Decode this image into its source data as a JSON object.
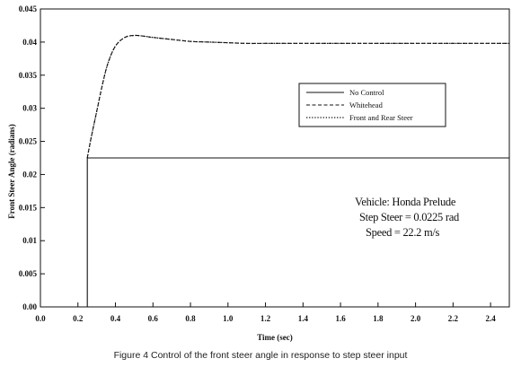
{
  "chart_data": {
    "type": "line",
    "title": "",
    "xlabel": "Time (sec)",
    "ylabel": "Front Steer Angle (radians)",
    "xlim": [
      0,
      2.5
    ],
    "ylim": [
      0,
      0.045
    ],
    "x_ticks": [
      "0.0",
      "0.2",
      "0.4",
      "0.6",
      "0.8",
      "1.0",
      "1.2",
      "1.4",
      "1.6",
      "1.8",
      "2.0",
      "2.2",
      "2.4"
    ],
    "y_ticks": [
      "0.00",
      "0.005",
      "0.01",
      "0.015",
      "0.02",
      "0.025",
      "0.03",
      "0.035",
      "0.04",
      "0.045"
    ],
    "grid": false,
    "legend_position": "right",
    "series": [
      {
        "name": "No Control",
        "style": "solid",
        "x": [
          0,
          0.25,
          0.25,
          2.5
        ],
        "y": [
          0,
          0,
          0.0225,
          0.0225
        ]
      },
      {
        "name": "Whitehead",
        "style": "dashed",
        "x": [
          0.25,
          0.27,
          0.3,
          0.33,
          0.36,
          0.4,
          0.45,
          0.5,
          0.55,
          0.6,
          0.7,
          0.8,
          0.9,
          1.0,
          1.1,
          1.2,
          1.4,
          1.6,
          1.8,
          2.0,
          2.5
        ],
        "y": [
          0.0225,
          0.0255,
          0.0295,
          0.0335,
          0.0368,
          0.0394,
          0.0407,
          0.041,
          0.0409,
          0.0407,
          0.0404,
          0.0401,
          0.04,
          0.0399,
          0.0398,
          0.0398,
          0.0398,
          0.0398,
          0.0398,
          0.0398,
          0.0398
        ]
      },
      {
        "name": "Front and Rear Steer",
        "style": "dotted",
        "x": [
          0.25,
          0.27,
          0.3,
          0.33,
          0.36,
          0.4,
          0.45,
          0.5,
          0.55,
          0.6,
          0.7,
          0.8,
          0.9,
          1.0,
          1.1,
          1.2,
          1.4,
          1.6,
          1.8,
          2.0,
          2.5
        ],
        "y": [
          0.0225,
          0.0255,
          0.0295,
          0.0335,
          0.0368,
          0.0394,
          0.0407,
          0.041,
          0.0409,
          0.0407,
          0.0404,
          0.0401,
          0.04,
          0.0399,
          0.0398,
          0.0398,
          0.0398,
          0.0398,
          0.0398,
          0.0398,
          0.0398
        ]
      }
    ],
    "annotations": [
      "Vehicle: Honda Prelude",
      "Step Steer = 0.0225 rad",
      "Speed = 22.2 m/s"
    ],
    "caption": "Figure 4  Control of the front steer angle in response to step steer input"
  }
}
